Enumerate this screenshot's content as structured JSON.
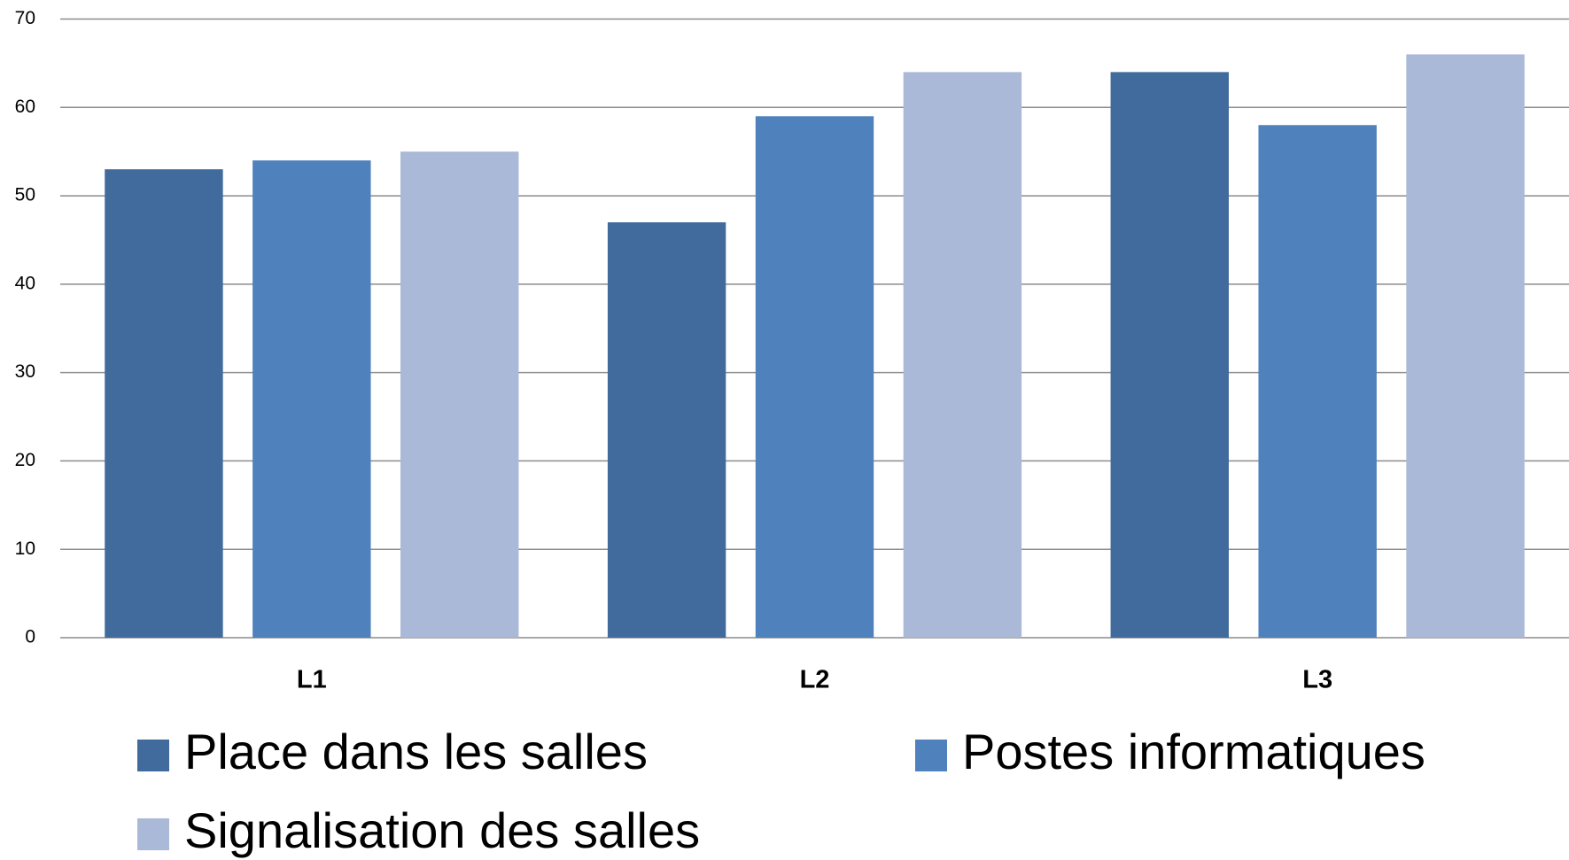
{
  "chart_data": {
    "type": "bar",
    "categories": [
      "L1",
      "L2",
      "L3"
    ],
    "series": [
      {
        "name": "Place dans les salles",
        "color": "#416b9c",
        "values": [
          53,
          47,
          64
        ]
      },
      {
        "name": "Postes informatiques",
        "color": "#4f81bd",
        "values": [
          54,
          59,
          58
        ]
      },
      {
        "name": "Signalisation des salles",
        "color": "#aab9d7",
        "values": [
          55,
          64,
          66
        ]
      }
    ],
    "ylim": [
      0,
      70
    ],
    "yticks": [
      0,
      10,
      20,
      30,
      40,
      50,
      60,
      70
    ],
    "grid": true,
    "legend": "bottom"
  }
}
